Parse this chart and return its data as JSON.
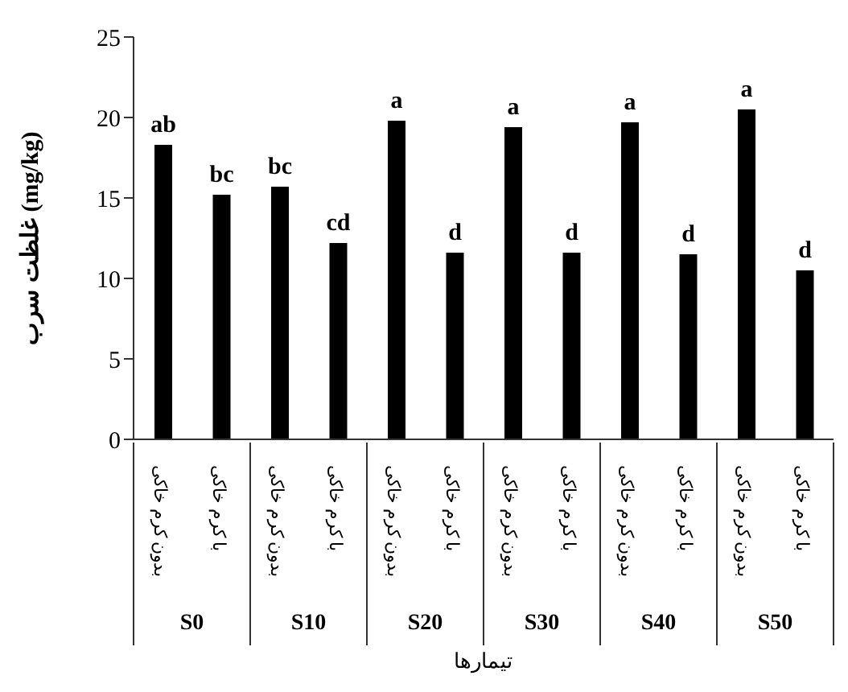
{
  "chart_data": {
    "type": "bar",
    "ylabel": "غلظت سرب (mg/kg)",
    "xlabel": "تیمارها",
    "categories": [
      "بدون کرم خاکی",
      "با کرم خاکی",
      "بدون کرم خاکی",
      "با کرم خاکی",
      "بدون کرم خاکی",
      "با کرم خاکی",
      "بدون کرم خاکی",
      "با کرم خاکی",
      "بدون کرم خاکی",
      "با کرم خاکی",
      "بدون کرم خاکی",
      "با کرم خاکی"
    ],
    "values": [
      18.3,
      15.2,
      15.7,
      12.2,
      19.8,
      11.6,
      19.4,
      11.6,
      19.7,
      11.5,
      20.5,
      10.5
    ],
    "value_labels": [
      "ab",
      "bc",
      "bc",
      "cd",
      "a",
      "d",
      "a",
      "d",
      "a",
      "d",
      "a",
      "d"
    ],
    "annotations": [
      "S0",
      "S10",
      "S20",
      "S30",
      "S40",
      "S50"
    ],
    "color": "#000000",
    "ylim": [
      0,
      25
    ],
    "yticks": [
      0,
      5,
      10,
      15,
      20,
      25
    ],
    "grid": false,
    "legend": false
  }
}
